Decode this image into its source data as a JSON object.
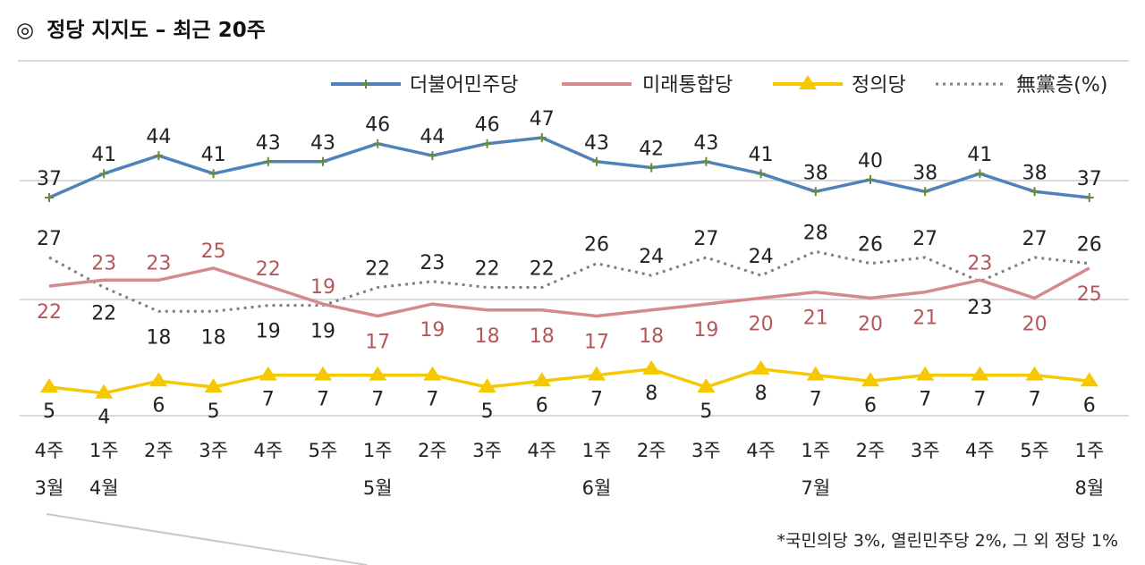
{
  "header": {
    "mark": "◎",
    "title": "정당 지지도 – 최근 20주"
  },
  "footnote": "*국민의당 3%, 열린민주당 2%, 그 외 정당 1%",
  "colors": {
    "minjoo": "#4f81bd",
    "tonghap": "#d48a8c",
    "jeongui": "#f5c800",
    "none": "#7f7f7f",
    "tonghap_label": "#b5575a",
    "grid": "#d9d9d9"
  },
  "chart_data": {
    "type": "line",
    "categories": [
      "4주",
      "1주",
      "2주",
      "3주",
      "4주",
      "5주",
      "1주",
      "2주",
      "3주",
      "4주",
      "1주",
      "2주",
      "3주",
      "4주",
      "1주",
      "2주",
      "3주",
      "4주",
      "5주",
      "1주"
    ],
    "months": [
      {
        "index": 0,
        "label": "3월"
      },
      {
        "index": 1,
        "label": "4월"
      },
      {
        "index": 6,
        "label": "5월"
      },
      {
        "index": 10,
        "label": "6월"
      },
      {
        "index": 14,
        "label": "7월"
      },
      {
        "index": 19,
        "label": "8월"
      }
    ],
    "series": [
      {
        "name": "더불어민주당",
        "values": [
          37,
          41,
          44,
          41,
          43,
          43,
          46,
          44,
          46,
          47,
          43,
          42,
          43,
          41,
          38,
          40,
          38,
          41,
          38,
          37
        ]
      },
      {
        "name": "미래통합당",
        "values": [
          22,
          23,
          23,
          25,
          22,
          19,
          17,
          19,
          18,
          18,
          17,
          18,
          19,
          20,
          21,
          20,
          21,
          23,
          20,
          25
        ]
      },
      {
        "name": "정의당",
        "values": [
          5,
          4,
          6,
          5,
          7,
          7,
          7,
          7,
          5,
          6,
          7,
          8,
          5,
          8,
          7,
          6,
          7,
          7,
          7,
          6
        ]
      },
      {
        "name": "無黨층(%)",
        "values": [
          27,
          22,
          18,
          18,
          19,
          19,
          22,
          23,
          22,
          22,
          26,
          24,
          27,
          24,
          28,
          26,
          27,
          23,
          27,
          26
        ]
      }
    ],
    "legend_position": "top-right",
    "grid": true
  }
}
